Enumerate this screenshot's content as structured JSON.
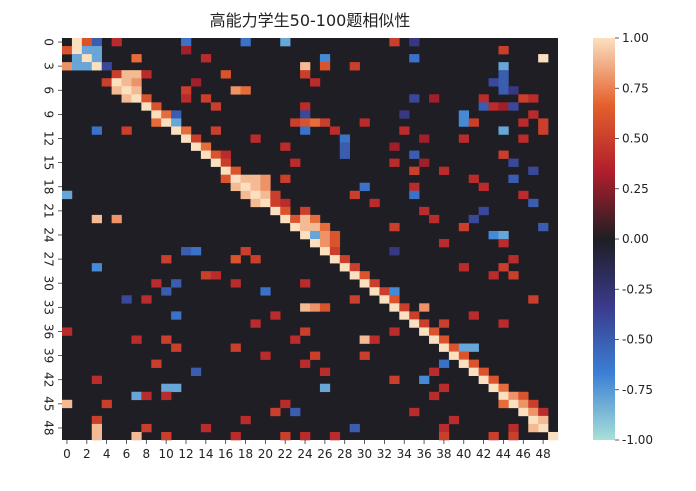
{
  "chart_data": {
    "type": "heatmap",
    "title": "高能力学生50-100题相似性",
    "xlabel": "",
    "ylabel": "",
    "size": 50,
    "x_tick_labels": [
      "0",
      "2",
      "4",
      "6",
      "8",
      "10",
      "12",
      "14",
      "16",
      "18",
      "20",
      "22",
      "24",
      "26",
      "28",
      "30",
      "32",
      "34",
      "36",
      "38",
      "40",
      "42",
      "44",
      "46",
      "48"
    ],
    "y_tick_labels": [
      "0",
      "3",
      "6",
      "9",
      "12",
      "15",
      "18",
      "21",
      "24",
      "27",
      "30",
      "33",
      "36",
      "39",
      "42",
      "45",
      "48"
    ],
    "colorbar": {
      "range": [
        -1.0,
        1.0
      ],
      "tick_labels": [
        "1.00",
        "0.75",
        "0.50",
        "0.25",
        "0.00",
        "-0.25",
        "-0.50",
        "-0.75",
        "-1.00"
      ],
      "stops": [
        "#a8e0d8",
        "#3b7fd4",
        "#3a3a8c",
        "#1e1e24",
        "#b01e2c",
        "#e4602c",
        "#fbe0c0"
      ]
    },
    "cells": [
      [
        0,
        1,
        1
      ],
      [
        0,
        2,
        0.6
      ],
      [
        0,
        3,
        -0.5
      ],
      [
        0,
        5,
        0.4
      ],
      [
        0,
        12,
        -0.6
      ],
      [
        0,
        18,
        -0.6
      ],
      [
        0,
        22,
        -0.8
      ],
      [
        0,
        33,
        0.5
      ],
      [
        0,
        35,
        -0.3
      ],
      [
        1,
        0,
        0.6
      ],
      [
        1,
        1,
        1
      ],
      [
        1,
        2,
        -0.8
      ],
      [
        1,
        3,
        -0.8
      ],
      [
        1,
        12,
        0.3
      ],
      [
        1,
        44,
        0.5
      ],
      [
        2,
        1,
        -0.8
      ],
      [
        2,
        2,
        1
      ],
      [
        2,
        3,
        -0.8
      ],
      [
        2,
        7,
        0.7
      ],
      [
        2,
        14,
        0.4
      ],
      [
        2,
        26,
        -0.7
      ],
      [
        2,
        35,
        -0.6
      ],
      [
        2,
        48,
        1
      ],
      [
        3,
        0,
        0.8
      ],
      [
        3,
        1,
        -0.8
      ],
      [
        3,
        2,
        -0.8
      ],
      [
        3,
        3,
        1
      ],
      [
        3,
        4,
        -0.4
      ],
      [
        3,
        24,
        0.9
      ],
      [
        3,
        26,
        0.6
      ],
      [
        3,
        29,
        0.5
      ],
      [
        3,
        44,
        -0.8
      ],
      [
        4,
        5,
        0.5
      ],
      [
        4,
        6,
        0.9
      ],
      [
        4,
        7,
        0.9
      ],
      [
        4,
        8,
        0.4
      ],
      [
        4,
        16,
        0.6
      ],
      [
        4,
        24,
        0.5
      ],
      [
        4,
        44,
        -0.5
      ],
      [
        5,
        4,
        0.5
      ],
      [
        5,
        5,
        1
      ],
      [
        5,
        6,
        0.9
      ],
      [
        5,
        7,
        0.8
      ],
      [
        5,
        13,
        0.3
      ],
      [
        5,
        25,
        0.4
      ],
      [
        5,
        43,
        -0.4
      ],
      [
        5,
        44,
        -0.5
      ],
      [
        6,
        5,
        0.9
      ],
      [
        6,
        6,
        1
      ],
      [
        6,
        7,
        0.9
      ],
      [
        6,
        12,
        0.5
      ],
      [
        6,
        17,
        0.8
      ],
      [
        6,
        18,
        0.7
      ],
      [
        6,
        44,
        -0.5
      ],
      [
        6,
        45,
        -0.3
      ],
      [
        7,
        6,
        0.9
      ],
      [
        7,
        7,
        1
      ],
      [
        7,
        8,
        0.6
      ],
      [
        7,
        12,
        0.4
      ],
      [
        7,
        14,
        0.5
      ],
      [
        7,
        35,
        -0.4
      ],
      [
        7,
        37,
        0.3
      ],
      [
        7,
        42,
        0.4
      ],
      [
        7,
        46,
        0.5
      ],
      [
        7,
        47,
        0.4
      ],
      [
        8,
        8,
        1
      ],
      [
        8,
        9,
        0.6
      ],
      [
        8,
        15,
        0.5
      ],
      [
        8,
        24,
        0.4
      ],
      [
        8,
        42,
        -0.5
      ],
      [
        8,
        43,
        0.4
      ],
      [
        8,
        44,
        0.3
      ],
      [
        8,
        45,
        -0.4
      ],
      [
        9,
        9,
        1
      ],
      [
        9,
        10,
        0.7
      ],
      [
        9,
        11,
        -0.5
      ],
      [
        9,
        24,
        -0.4
      ],
      [
        9,
        34,
        -0.3
      ],
      [
        9,
        40,
        -0.7
      ],
      [
        9,
        47,
        0.4
      ],
      [
        10,
        9,
        0.7
      ],
      [
        10,
        10,
        1
      ],
      [
        10,
        11,
        -0.8
      ],
      [
        10,
        23,
        0.5
      ],
      [
        10,
        24,
        0.6
      ],
      [
        10,
        25,
        0.7
      ],
      [
        10,
        26,
        0.5
      ],
      [
        10,
        30,
        0.4
      ],
      [
        10,
        40,
        -0.7
      ],
      [
        10,
        41,
        0.5
      ],
      [
        10,
        46,
        0.4
      ],
      [
        10,
        48,
        0.5
      ],
      [
        11,
        3,
        -0.6
      ],
      [
        11,
        6,
        0.5
      ],
      [
        11,
        11,
        1
      ],
      [
        11,
        12,
        0.7
      ],
      [
        11,
        15,
        0.5
      ],
      [
        11,
        24,
        -0.6
      ],
      [
        11,
        27,
        0.4
      ],
      [
        11,
        34,
        0.4
      ],
      [
        11,
        44,
        -0.8
      ],
      [
        11,
        48,
        0.5
      ],
      [
        12,
        12,
        1
      ],
      [
        12,
        13,
        0.5
      ],
      [
        12,
        19,
        0.4
      ],
      [
        12,
        28,
        -0.6
      ],
      [
        12,
        36,
        0.3
      ],
      [
        12,
        40,
        0.4
      ],
      [
        12,
        46,
        0.4
      ],
      [
        13,
        13,
        1
      ],
      [
        13,
        14,
        0.7
      ],
      [
        13,
        22,
        0.4
      ],
      [
        13,
        28,
        -0.5
      ],
      [
        13,
        33,
        0.3
      ],
      [
        14,
        14,
        1
      ],
      [
        14,
        15,
        0.6
      ],
      [
        14,
        16,
        0.4
      ],
      [
        14,
        28,
        -0.5
      ],
      [
        14,
        35,
        -0.5
      ],
      [
        14,
        44,
        0.5
      ],
      [
        15,
        15,
        1
      ],
      [
        15,
        16,
        0.5
      ],
      [
        15,
        23,
        0.4
      ],
      [
        15,
        33,
        0.4
      ],
      [
        15,
        36,
        0.3
      ],
      [
        15,
        45,
        -0.4
      ],
      [
        16,
        16,
        1
      ],
      [
        16,
        17,
        0.6
      ],
      [
        16,
        35,
        0.5
      ],
      [
        16,
        38,
        0.4
      ],
      [
        16,
        47,
        -0.4
      ],
      [
        17,
        16,
        0.6
      ],
      [
        17,
        17,
        1
      ],
      [
        17,
        18,
        0.9
      ],
      [
        17,
        19,
        0.9
      ],
      [
        17,
        20,
        0.8
      ],
      [
        17,
        22,
        0.5
      ],
      [
        17,
        41,
        0.4
      ],
      [
        17,
        45,
        -0.5
      ],
      [
        18,
        17,
        0.9
      ],
      [
        18,
        18,
        1
      ],
      [
        18,
        19,
        0.9
      ],
      [
        18,
        20,
        0.8
      ],
      [
        18,
        30,
        -0.6
      ],
      [
        18,
        35,
        0.4
      ],
      [
        18,
        42,
        0.4
      ],
      [
        19,
        0,
        -0.8
      ],
      [
        19,
        18,
        0.9
      ],
      [
        19,
        19,
        1
      ],
      [
        19,
        20,
        0.9
      ],
      [
        19,
        21,
        0.5
      ],
      [
        19,
        29,
        0.5
      ],
      [
        19,
        35,
        -0.6
      ],
      [
        19,
        46,
        0.4
      ],
      [
        20,
        19,
        0.9
      ],
      [
        20,
        20,
        1
      ],
      [
        20,
        21,
        0.5
      ],
      [
        20,
        22,
        0.4
      ],
      [
        20,
        31,
        0.4
      ],
      [
        20,
        47,
        -0.5
      ],
      [
        21,
        21,
        1
      ],
      [
        21,
        22,
        0.6
      ],
      [
        21,
        24,
        0.5
      ],
      [
        21,
        36,
        0.4
      ],
      [
        21,
        42,
        -0.4
      ],
      [
        22,
        3,
        0.9
      ],
      [
        22,
        5,
        0.8
      ],
      [
        22,
        22,
        1
      ],
      [
        22,
        23,
        0.6
      ],
      [
        22,
        24,
        0.9
      ],
      [
        22,
        25,
        0.7
      ],
      [
        22,
        37,
        0.4
      ],
      [
        22,
        41,
        -0.4
      ],
      [
        23,
        23,
        1
      ],
      [
        23,
        24,
        0.9
      ],
      [
        23,
        25,
        0.9
      ],
      [
        23,
        26,
        0.7
      ],
      [
        23,
        33,
        0.5
      ],
      [
        23,
        40,
        0.5
      ],
      [
        23,
        48,
        -0.5
      ],
      [
        24,
        24,
        1
      ],
      [
        24,
        25,
        -0.8
      ],
      [
        24,
        26,
        0.8
      ],
      [
        24,
        27,
        0.6
      ],
      [
        24,
        43,
        -0.7
      ],
      [
        24,
        44,
        -0.8
      ],
      [
        25,
        25,
        1
      ],
      [
        25,
        26,
        0.8
      ],
      [
        25,
        27,
        0.6
      ],
      [
        25,
        38,
        0.4
      ],
      [
        25,
        44,
        0.4
      ],
      [
        26,
        26,
        1
      ],
      [
        26,
        27,
        0.5
      ],
      [
        26,
        12,
        -0.5
      ],
      [
        26,
        13,
        -0.6
      ],
      [
        26,
        18,
        0.5
      ],
      [
        26,
        33,
        -0.3
      ],
      [
        27,
        27,
        1
      ],
      [
        27,
        28,
        0.5
      ],
      [
        27,
        10,
        0.5
      ],
      [
        27,
        17,
        0.6
      ],
      [
        27,
        19,
        0.5
      ],
      [
        27,
        45,
        0.4
      ],
      [
        28,
        28,
        1
      ],
      [
        28,
        29,
        0.5
      ],
      [
        28,
        3,
        -0.7
      ],
      [
        28,
        40,
        0.4
      ],
      [
        28,
        44,
        0.5
      ],
      [
        29,
        29,
        1
      ],
      [
        29,
        30,
        0.6
      ],
      [
        29,
        14,
        0.5
      ],
      [
        29,
        15,
        0.4
      ],
      [
        29,
        43,
        0.4
      ],
      [
        29,
        45,
        0.5
      ],
      [
        30,
        30,
        1
      ],
      [
        30,
        31,
        0.5
      ],
      [
        30,
        9,
        0.4
      ],
      [
        30,
        11,
        -0.5
      ],
      [
        30,
        17,
        0.4
      ],
      [
        30,
        24,
        0.4
      ],
      [
        31,
        31,
        1
      ],
      [
        31,
        32,
        0.5
      ],
      [
        31,
        10,
        -0.5
      ],
      [
        31,
        20,
        -0.6
      ],
      [
        31,
        33,
        -0.7
      ],
      [
        32,
        32,
        1
      ],
      [
        32,
        33,
        0.6
      ],
      [
        32,
        6,
        -0.4
      ],
      [
        32,
        8,
        0.4
      ],
      [
        32,
        29,
        0.5
      ],
      [
        32,
        47,
        0.5
      ],
      [
        33,
        33,
        1
      ],
      [
        33,
        34,
        0.5
      ],
      [
        33,
        24,
        0.9
      ],
      [
        33,
        25,
        0.8
      ],
      [
        33,
        26,
        0.6
      ],
      [
        33,
        36,
        0.8
      ],
      [
        34,
        34,
        1
      ],
      [
        34,
        35,
        0.5
      ],
      [
        34,
        11,
        -0.6
      ],
      [
        34,
        21,
        0.4
      ],
      [
        34,
        41,
        0.4
      ],
      [
        35,
        35,
        1
      ],
      [
        35,
        36,
        0.5
      ],
      [
        35,
        19,
        0.4
      ],
      [
        35,
        38,
        0.5
      ],
      [
        35,
        44,
        0.4
      ],
      [
        36,
        36,
        1
      ],
      [
        36,
        37,
        0.6
      ],
      [
        36,
        0,
        0.4
      ],
      [
        36,
        24,
        0.5
      ],
      [
        36,
        33,
        0.4
      ],
      [
        37,
        37,
        1
      ],
      [
        37,
        38,
        0.6
      ],
      [
        37,
        7,
        0.4
      ],
      [
        37,
        10,
        0.5
      ],
      [
        37,
        23,
        0.4
      ],
      [
        37,
        30,
        0.9
      ],
      [
        37,
        31,
        0.4
      ],
      [
        38,
        38,
        1
      ],
      [
        38,
        39,
        0.6
      ],
      [
        38,
        40,
        -0.8
      ],
      [
        38,
        41,
        -0.8
      ],
      [
        38,
        11,
        0.5
      ],
      [
        38,
        17,
        0.5
      ],
      [
        39,
        39,
        1
      ],
      [
        39,
        40,
        0.6
      ],
      [
        39,
        20,
        0.4
      ],
      [
        39,
        25,
        0.5
      ],
      [
        39,
        30,
        0.5
      ],
      [
        40,
        40,
        1
      ],
      [
        40,
        41,
        0.6
      ],
      [
        40,
        9,
        0.5
      ],
      [
        40,
        24,
        0.4
      ],
      [
        40,
        38,
        -0.6
      ],
      [
        41,
        41,
        1
      ],
      [
        41,
        42,
        0.6
      ],
      [
        41,
        13,
        -0.5
      ],
      [
        41,
        26,
        0.4
      ],
      [
        41,
        37,
        0.4
      ],
      [
        42,
        42,
        1
      ],
      [
        42,
        43,
        0.6
      ],
      [
        42,
        3,
        0.4
      ],
      [
        42,
        33,
        0.5
      ],
      [
        42,
        36,
        -0.7
      ],
      [
        43,
        43,
        1
      ],
      [
        43,
        44,
        0.7
      ],
      [
        43,
        10,
        -0.8
      ],
      [
        43,
        11,
        -0.8
      ],
      [
        43,
        26,
        -0.8
      ],
      [
        43,
        38,
        0.4
      ],
      [
        44,
        44,
        1
      ],
      [
        44,
        45,
        0.8
      ],
      [
        44,
        7,
        -0.8
      ],
      [
        44,
        8,
        0.4
      ],
      [
        44,
        10,
        0.4
      ],
      [
        44,
        37,
        0.4
      ],
      [
        44,
        46,
        0.6
      ],
      [
        45,
        45,
        1
      ],
      [
        45,
        46,
        0.8
      ],
      [
        45,
        0,
        0.9
      ],
      [
        45,
        4,
        0.5
      ],
      [
        45,
        22,
        0.4
      ],
      [
        45,
        44,
        0.7
      ],
      [
        45,
        47,
        0.5
      ],
      [
        46,
        46,
        1
      ],
      [
        46,
        47,
        0.8
      ],
      [
        46,
        21,
        0.5
      ],
      [
        46,
        23,
        -0.5
      ],
      [
        46,
        35,
        0.4
      ],
      [
        46,
        48,
        0.4
      ],
      [
        47,
        47,
        1
      ],
      [
        47,
        48,
        0.9
      ],
      [
        47,
        3,
        0.5
      ],
      [
        47,
        18,
        0.4
      ],
      [
        47,
        39,
        0.4
      ],
      [
        48,
        48,
        1
      ],
      [
        48,
        47,
        0.9
      ],
      [
        48,
        3,
        0.9
      ],
      [
        48,
        8,
        0.5
      ],
      [
        48,
        14,
        0.4
      ],
      [
        48,
        29,
        -0.5
      ],
      [
        48,
        38,
        0.4
      ],
      [
        48,
        45,
        0.4
      ],
      [
        49,
        49,
        1
      ],
      [
        49,
        3,
        0.9
      ],
      [
        49,
        7,
        0.9
      ],
      [
        49,
        10,
        0.5
      ],
      [
        49,
        17,
        0.4
      ],
      [
        49,
        22,
        0.5
      ],
      [
        49,
        24,
        0.4
      ],
      [
        49,
        27,
        0.4
      ],
      [
        49,
        38,
        0.5
      ],
      [
        49,
        43,
        0.5
      ],
      [
        49,
        45,
        0.5
      ]
    ]
  }
}
